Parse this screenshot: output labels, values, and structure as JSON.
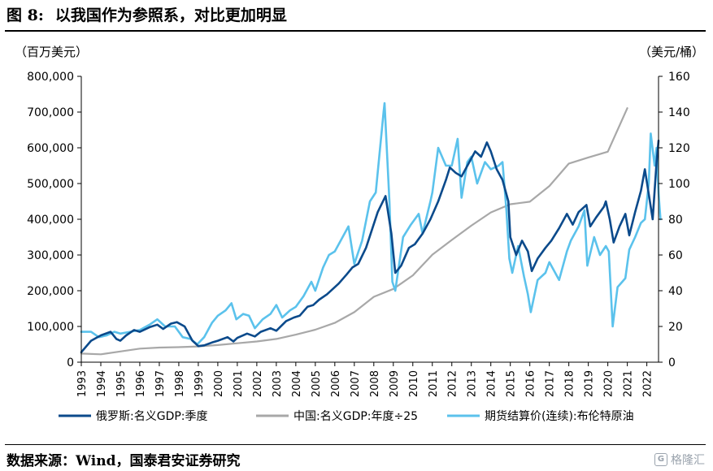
{
  "figure": {
    "label": "图 8:",
    "title": "以我国作为参照系，对比更加明显"
  },
  "source": "数据来源：Wind，国泰君安证券研究",
  "watermark": "格隆汇",
  "colors": {
    "russia": "#0b4a8b",
    "china": "#a8a8a8",
    "brent": "#5bc2ec"
  },
  "chart_data": {
    "type": "line",
    "left_unit": "（百万美元）",
    "right_unit": "（美元/桶）",
    "x_ticks": [
      "1993",
      "1994",
      "1995",
      "1996",
      "1997",
      "1998",
      "1999",
      "2000",
      "2001",
      "2002",
      "2003",
      "2004",
      "2005",
      "2006",
      "2007",
      "2008",
      "2009",
      "2010",
      "2011",
      "2012",
      "2013",
      "2014",
      "2015",
      "2016",
      "2017",
      "2018",
      "2019",
      "2020",
      "2021",
      "2022"
    ],
    "xlim": [
      1993,
      2022.6
    ],
    "y_left": {
      "ticks": [
        "0",
        "100,000",
        "200,000",
        "300,000",
        "400,000",
        "500,000",
        "600,000",
        "700,000",
        "800,000"
      ],
      "lim": [
        0,
        800000
      ]
    },
    "y_right": {
      "ticks": [
        "0",
        "20",
        "40",
        "60",
        "80",
        "100",
        "120",
        "140",
        "160"
      ],
      "lim": [
        0,
        160
      ]
    },
    "series": [
      {
        "name": "俄罗斯:名义GDP:季度",
        "axis": "left",
        "color_key": "russia",
        "points": [
          [
            1993.0,
            28000
          ],
          [
            1993.5,
            60000
          ],
          [
            1994.0,
            75000
          ],
          [
            1994.5,
            85000
          ],
          [
            1994.8,
            65000
          ],
          [
            1995.0,
            60000
          ],
          [
            1995.3,
            75000
          ],
          [
            1995.7,
            90000
          ],
          [
            1996.0,
            85000
          ],
          [
            1996.5,
            98000
          ],
          [
            1996.9,
            105000
          ],
          [
            1997.2,
            93000
          ],
          [
            1997.6,
            108000
          ],
          [
            1997.9,
            112000
          ],
          [
            1998.3,
            100000
          ],
          [
            1998.7,
            60000
          ],
          [
            1999.0,
            45000
          ],
          [
            1999.3,
            47000
          ],
          [
            1999.7,
            55000
          ],
          [
            2000.0,
            60000
          ],
          [
            2000.5,
            70000
          ],
          [
            2000.8,
            58000
          ],
          [
            2001.0,
            68000
          ],
          [
            2001.5,
            80000
          ],
          [
            2001.9,
            72000
          ],
          [
            2002.2,
            85000
          ],
          [
            2002.7,
            95000
          ],
          [
            2003.0,
            88000
          ],
          [
            2003.5,
            115000
          ],
          [
            2003.9,
            125000
          ],
          [
            2004.2,
            130000
          ],
          [
            2004.6,
            155000
          ],
          [
            2004.9,
            160000
          ],
          [
            2005.2,
            175000
          ],
          [
            2005.6,
            190000
          ],
          [
            2005.9,
            205000
          ],
          [
            2006.2,
            220000
          ],
          [
            2006.6,
            245000
          ],
          [
            2006.9,
            265000
          ],
          [
            2007.2,
            275000
          ],
          [
            2007.6,
            320000
          ],
          [
            2007.9,
            370000
          ],
          [
            2008.2,
            420000
          ],
          [
            2008.6,
            465000
          ],
          [
            2008.9,
            360000
          ],
          [
            2009.1,
            250000
          ],
          [
            2009.4,
            270000
          ],
          [
            2009.8,
            320000
          ],
          [
            2010.1,
            330000
          ],
          [
            2010.5,
            360000
          ],
          [
            2010.9,
            400000
          ],
          [
            2011.3,
            450000
          ],
          [
            2011.7,
            510000
          ],
          [
            2011.9,
            545000
          ],
          [
            2012.2,
            530000
          ],
          [
            2012.5,
            520000
          ],
          [
            2012.9,
            560000
          ],
          [
            2013.2,
            590000
          ],
          [
            2013.5,
            575000
          ],
          [
            2013.8,
            615000
          ],
          [
            2014.0,
            590000
          ],
          [
            2014.3,
            540000
          ],
          [
            2014.6,
            510000
          ],
          [
            2014.9,
            450000
          ],
          [
            2015.0,
            350000
          ],
          [
            2015.3,
            300000
          ],
          [
            2015.6,
            340000
          ],
          [
            2015.9,
            310000
          ],
          [
            2016.1,
            255000
          ],
          [
            2016.4,
            290000
          ],
          [
            2016.8,
            320000
          ],
          [
            2017.1,
            340000
          ],
          [
            2017.5,
            375000
          ],
          [
            2017.9,
            415000
          ],
          [
            2018.2,
            385000
          ],
          [
            2018.5,
            420000
          ],
          [
            2018.9,
            440000
          ],
          [
            2019.1,
            380000
          ],
          [
            2019.4,
            405000
          ],
          [
            2019.8,
            435000
          ],
          [
            2019.9,
            450000
          ],
          [
            2020.1,
            400000
          ],
          [
            2020.3,
            335000
          ],
          [
            2020.6,
            380000
          ],
          [
            2020.9,
            415000
          ],
          [
            2021.1,
            355000
          ],
          [
            2021.4,
            420000
          ],
          [
            2021.7,
            480000
          ],
          [
            2021.9,
            540000
          ],
          [
            2022.1,
            470000
          ],
          [
            2022.3,
            400000
          ],
          [
            2022.5,
            560000
          ],
          [
            2022.6,
            620000
          ]
        ]
      },
      {
        "name": "中国:名义GDP:年度÷25",
        "axis": "left",
        "color_key": "china",
        "points": [
          [
            1993,
            24000
          ],
          [
            1994,
            22000
          ],
          [
            1995,
            30000
          ],
          [
            1996,
            38000
          ],
          [
            1997,
            41000
          ],
          [
            1998,
            42000
          ],
          [
            1999,
            44000
          ],
          [
            2000,
            48000
          ],
          [
            2001,
            53000
          ],
          [
            2002,
            58000
          ],
          [
            2003,
            65000
          ],
          [
            2004,
            77000
          ],
          [
            2005,
            91000
          ],
          [
            2006,
            110000
          ],
          [
            2007,
            140000
          ],
          [
            2008,
            183000
          ],
          [
            2009,
            205000
          ],
          [
            2010,
            243000
          ],
          [
            2011,
            301000
          ],
          [
            2012,
            342000
          ],
          [
            2013,
            382000
          ],
          [
            2014,
            419000
          ],
          [
            2015,
            442000
          ],
          [
            2016,
            449000
          ],
          [
            2017,
            493000
          ],
          [
            2018,
            556000
          ],
          [
            2019,
            573000
          ],
          [
            2020,
            589000
          ],
          [
            2021,
            711000
          ]
        ]
      },
      {
        "name": "期货结算价(连续):布伦特原油",
        "axis": "right",
        "color_key": "brent",
        "points": [
          [
            1993.0,
            17
          ],
          [
            1993.5,
            17
          ],
          [
            1993.9,
            14
          ],
          [
            1994.3,
            15
          ],
          [
            1994.7,
            17
          ],
          [
            1995.0,
            16
          ],
          [
            1995.5,
            17
          ],
          [
            1996.0,
            18
          ],
          [
            1996.5,
            21
          ],
          [
            1996.9,
            24
          ],
          [
            1997.3,
            20
          ],
          [
            1997.8,
            20
          ],
          [
            1998.2,
            14
          ],
          [
            1998.6,
            13
          ],
          [
            1998.95,
            10
          ],
          [
            1999.3,
            14
          ],
          [
            1999.7,
            22
          ],
          [
            2000.0,
            26
          ],
          [
            2000.4,
            29
          ],
          [
            2000.7,
            33
          ],
          [
            2000.95,
            24
          ],
          [
            2001.3,
            27
          ],
          [
            2001.6,
            26
          ],
          [
            2001.9,
            19
          ],
          [
            2002.3,
            24
          ],
          [
            2002.7,
            27
          ],
          [
            2003.0,
            32
          ],
          [
            2003.3,
            25
          ],
          [
            2003.7,
            29
          ],
          [
            2004.0,
            31
          ],
          [
            2004.4,
            37
          ],
          [
            2004.8,
            45
          ],
          [
            2005.0,
            40
          ],
          [
            2005.4,
            53
          ],
          [
            2005.7,
            60
          ],
          [
            2006.0,
            62
          ],
          [
            2006.4,
            70
          ],
          [
            2006.7,
            76
          ],
          [
            2007.0,
            55
          ],
          [
            2007.4,
            68
          ],
          [
            2007.8,
            90
          ],
          [
            2008.1,
            95
          ],
          [
            2008.5,
            140
          ],
          [
            2008.55,
            145
          ],
          [
            2008.8,
            90
          ],
          [
            2008.95,
            45
          ],
          [
            2009.1,
            40
          ],
          [
            2009.5,
            70
          ],
          [
            2009.9,
            77
          ],
          [
            2010.3,
            83
          ],
          [
            2010.5,
            72
          ],
          [
            2010.9,
            90
          ],
          [
            2011.0,
            95
          ],
          [
            2011.3,
            120
          ],
          [
            2011.7,
            110
          ],
          [
            2012.0,
            110
          ],
          [
            2012.3,
            125
          ],
          [
            2012.5,
            92
          ],
          [
            2012.8,
            112
          ],
          [
            2013.0,
            115
          ],
          [
            2013.3,
            100
          ],
          [
            2013.7,
            112
          ],
          [
            2014.0,
            108
          ],
          [
            2014.4,
            110
          ],
          [
            2014.6,
            112
          ],
          [
            2014.8,
            85
          ],
          [
            2014.95,
            58
          ],
          [
            2015.1,
            50
          ],
          [
            2015.4,
            65
          ],
          [
            2015.7,
            48
          ],
          [
            2015.9,
            38
          ],
          [
            2016.05,
            28
          ],
          [
            2016.4,
            46
          ],
          [
            2016.8,
            50
          ],
          [
            2017.0,
            56
          ],
          [
            2017.5,
            46
          ],
          [
            2017.9,
            62
          ],
          [
            2018.1,
            68
          ],
          [
            2018.5,
            76
          ],
          [
            2018.8,
            85
          ],
          [
            2018.95,
            54
          ],
          [
            2019.3,
            70
          ],
          [
            2019.6,
            60
          ],
          [
            2019.9,
            65
          ],
          [
            2020.05,
            62
          ],
          [
            2020.25,
            20
          ],
          [
            2020.5,
            42
          ],
          [
            2020.9,
            47
          ],
          [
            2021.1,
            63
          ],
          [
            2021.4,
            70
          ],
          [
            2021.7,
            78
          ],
          [
            2021.9,
            80
          ],
          [
            2022.1,
            100
          ],
          [
            2022.2,
            128
          ],
          [
            2022.4,
            110
          ],
          [
            2022.5,
            120
          ],
          [
            2022.6,
            95
          ],
          [
            2022.7,
            80
          ]
        ]
      }
    ]
  }
}
